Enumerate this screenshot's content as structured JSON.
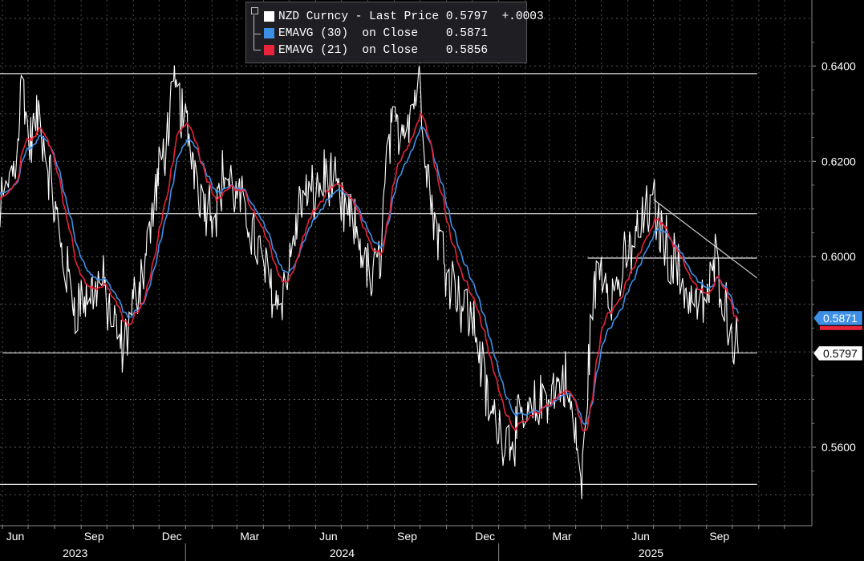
{
  "legend": {
    "rows": [
      {
        "label": "NZD Curncy - Last Price",
        "value": "0.5797",
        "change": "+.0003",
        "color": "#ffffff"
      },
      {
        "label": "EMAVG (30)  on Close",
        "value": "0.5871",
        "change": "",
        "color": "#3d8fe6"
      },
      {
        "label": "EMAVG (21)  on Close",
        "value": "0.5856",
        "change": "",
        "color": "#e8233a"
      }
    ]
  },
  "chart_data": {
    "type": "line",
    "title": "",
    "xlabel": "",
    "ylabel": "",
    "ylim": [
      0.549,
      0.653
    ],
    "y_ticks": [
      "0.5600",
      "0.5800",
      "0.6000",
      "0.6200",
      "0.6400"
    ],
    "month_labels": [
      "Jun",
      "Sep",
      "Dec",
      "Mar",
      "Jun",
      "Sep",
      "Dec",
      "Mar",
      "Jun",
      "Sep"
    ],
    "year_labels": [
      "2023",
      "2024",
      "2025"
    ],
    "grid": true,
    "legend_position": "top-center",
    "last_value_labels": [
      {
        "text": "0.5871",
        "value": 0.5871,
        "color": "#3d8fe6"
      },
      {
        "text": "0.5797",
        "value": 0.5797,
        "color": "#ffffff"
      }
    ],
    "price_series": {
      "name": "NZD Curncy - Last Price",
      "color": "#ffffff",
      "anchors": [
        [
          "2023-05-05",
          0.617
        ],
        [
          "2023-05-20",
          0.608
        ],
        [
          "2023-06-05",
          0.613
        ],
        [
          "2023-06-18",
          0.622
        ],
        [
          "2023-06-24",
          0.639
        ],
        [
          "2023-07-02",
          0.623
        ],
        [
          "2023-07-14",
          0.63
        ],
        [
          "2023-07-28",
          0.615
        ],
        [
          "2023-08-10",
          0.6
        ],
        [
          "2023-08-25",
          0.59
        ],
        [
          "2023-09-10",
          0.592
        ],
        [
          "2023-09-25",
          0.595
        ],
        [
          "2023-10-05",
          0.588
        ],
        [
          "2023-10-20",
          0.58
        ],
        [
          "2023-11-01",
          0.59
        ],
        [
          "2023-11-15",
          0.6
        ],
        [
          "2023-12-01",
          0.617
        ],
        [
          "2023-12-15",
          0.63
        ],
        [
          "2023-12-20",
          0.635
        ],
        [
          "2024-01-05",
          0.625
        ],
        [
          "2024-01-20",
          0.612
        ],
        [
          "2024-02-05",
          0.61
        ],
        [
          "2024-02-15",
          0.618
        ],
        [
          "2024-03-01",
          0.612
        ],
        [
          "2024-03-15",
          0.608
        ],
        [
          "2024-04-01",
          0.598
        ],
        [
          "2024-04-18",
          0.59
        ],
        [
          "2024-05-01",
          0.598
        ],
        [
          "2024-05-15",
          0.612
        ],
        [
          "2024-06-01",
          0.613
        ],
        [
          "2024-06-15",
          0.618
        ],
        [
          "2024-07-01",
          0.61
        ],
        [
          "2024-07-20",
          0.605
        ],
        [
          "2024-08-05",
          0.594
        ],
        [
          "2024-08-15",
          0.6
        ],
        [
          "2024-08-25",
          0.624
        ],
        [
          "2024-09-20",
          0.631
        ],
        [
          "2024-09-30",
          0.637
        ],
        [
          "2024-10-15",
          0.61
        ],
        [
          "2024-11-01",
          0.598
        ],
        [
          "2024-11-20",
          0.59
        ],
        [
          "2024-12-05",
          0.585
        ],
        [
          "2024-12-20",
          0.568
        ],
        [
          "2025-01-10",
          0.562
        ],
        [
          "2025-01-25",
          0.564
        ],
        [
          "2025-02-10",
          0.567
        ],
        [
          "2025-02-25",
          0.571
        ],
        [
          "2025-03-10",
          0.573
        ],
        [
          "2025-03-20",
          0.574
        ],
        [
          "2025-04-03",
          0.56
        ],
        [
          "2025-04-08",
          0.551
        ],
        [
          "2025-04-20",
          0.59
        ],
        [
          "2025-05-01",
          0.599
        ],
        [
          "2025-05-15",
          0.592
        ],
        [
          "2025-06-01",
          0.6
        ],
        [
          "2025-06-15",
          0.606
        ],
        [
          "2025-07-01",
          0.611
        ],
        [
          "2025-07-10",
          0.605
        ],
        [
          "2025-07-25",
          0.599
        ],
        [
          "2025-08-10",
          0.592
        ],
        [
          "2025-08-25",
          0.589
        ],
        [
          "2025-09-05",
          0.593
        ],
        [
          "2025-09-12",
          0.6
        ],
        [
          "2025-09-25",
          0.588
        ],
        [
          "2025-10-08",
          0.5797
        ]
      ]
    },
    "ema_series": [
      {
        "name": "EMAVG (30)",
        "color": "#3d8fe6",
        "span": 30,
        "last": 0.5871
      },
      {
        "name": "EMAVG (21)",
        "color": "#e8233a",
        "span": 21,
        "last": 0.5856
      }
    ],
    "horizontal_lines": [
      {
        "value": 0.6384,
        "from": "2023-05-01",
        "to": "2025-10-30"
      },
      {
        "value": 0.609,
        "from": "2023-05-01",
        "to": "2025-10-30"
      },
      {
        "value": 0.5997,
        "from": "2025-04-15",
        "to": "2025-10-30"
      },
      {
        "value": 0.5798,
        "from": "2023-06-01",
        "to": "2025-10-30"
      },
      {
        "value": 0.5522,
        "from": "2023-05-01",
        "to": "2025-10-30"
      }
    ],
    "trend_line": {
      "from": [
        "2025-07-01",
        0.612
      ],
      "to": [
        "2025-10-30",
        0.5955
      ]
    }
  }
}
